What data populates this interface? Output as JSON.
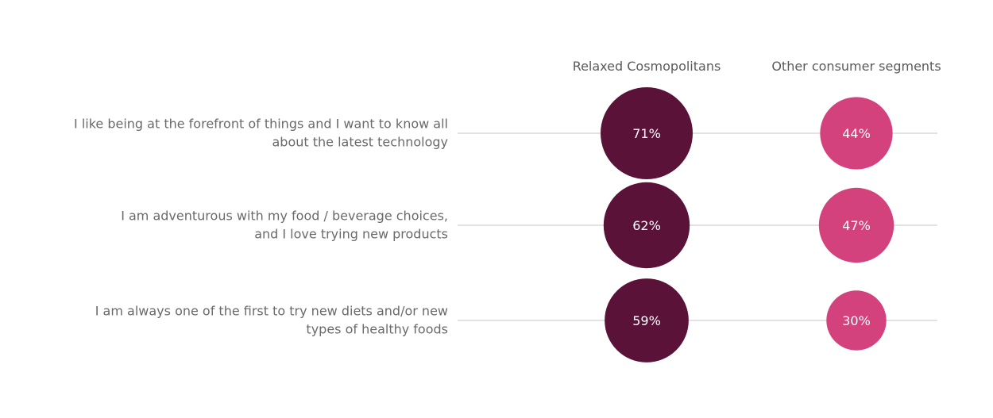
{
  "chart_data": {
    "type": "bubble",
    "series": [
      {
        "name": "Relaxed Cosmopolitans",
        "values": [
          71,
          62,
          59
        ],
        "labels": [
          "71%",
          "62%",
          "59%"
        ],
        "color": "#5a1239"
      },
      {
        "name": "Other consumer segments",
        "values": [
          44,
          47,
          30
        ],
        "labels": [
          "44%",
          "47%",
          "30%"
        ],
        "color": "#d4427e"
      }
    ],
    "categories": [
      [
        "I like being at the forefront of things and I want to know all",
        "about the latest technology"
      ],
      [
        "I am adventurous with my food / beverage choices,",
        "and I love trying new products"
      ],
      [
        "I am always one of the first to try new diets and/or new",
        "types of healthy foods"
      ]
    ],
    "unit": "%",
    "grid": false,
    "legend": "top"
  }
}
